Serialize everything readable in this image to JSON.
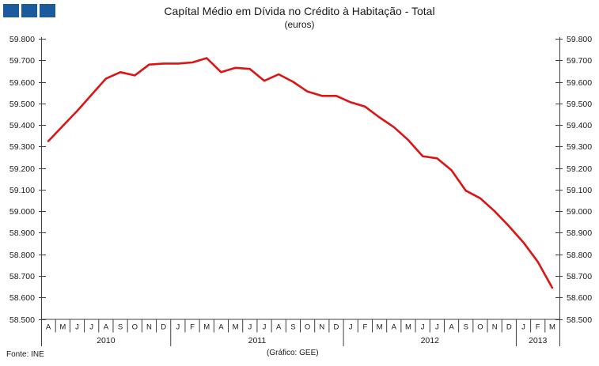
{
  "header": {
    "title": "Capítal Médio em Dívida no Crédito à Habitação - Total",
    "subtitle": "(euros)"
  },
  "footer": {
    "source": "Fonte: INE",
    "credit": "(Gráfico: GEE)"
  },
  "logo": {
    "square_color": "#1b5a9c",
    "squares": 3
  },
  "chart_data": {
    "type": "line",
    "title": "Capítal Médio em Dívida no Crédito à Habitação - Total",
    "subtitle": "(euros)",
    "ylabel": "",
    "xlabel": "",
    "line_color": "#dc1414",
    "axis_color": "#3f3f3f",
    "ylim": [
      58500,
      59800
    ],
    "y_tick_step": 100,
    "y_tick_labels": [
      "59.800",
      "59.700",
      "59.600",
      "59.500",
      "59.400",
      "59.300",
      "59.200",
      "59.100",
      "59.000",
      "58.900",
      "58.800",
      "58.700",
      "58.600",
      "58.500"
    ],
    "y_tick_values": [
      59800,
      59700,
      59600,
      59500,
      59400,
      59300,
      59200,
      59100,
      59000,
      58900,
      58800,
      58700,
      58600,
      58500
    ],
    "legend": "none",
    "grid": false,
    "x_month_labels": [
      "A",
      "M",
      "J",
      "J",
      "A",
      "S",
      "O",
      "N",
      "D",
      "J",
      "F",
      "M",
      "A",
      "M",
      "J",
      "J",
      "A",
      "S",
      "O",
      "N",
      "D",
      "J",
      "F",
      "M",
      "A",
      "M",
      "J",
      "J",
      "A",
      "S",
      "O",
      "N",
      "D",
      "J",
      "F",
      "M"
    ],
    "years": [
      {
        "label": "2010",
        "months": 9
      },
      {
        "label": "2011",
        "months": 12
      },
      {
        "label": "2012",
        "months": 12
      },
      {
        "label": "2013",
        "months": 3
      }
    ],
    "values": [
      59325,
      59395,
      59465,
      59540,
      59615,
      59645,
      59630,
      59680,
      59685,
      59685,
      59690,
      59710,
      59645,
      59665,
      59660,
      59605,
      59635,
      59600,
      59555,
      59535,
      59535,
      59505,
      59485,
      59435,
      59390,
      59330,
      59255,
      59245,
      59190,
      59095,
      59060,
      59000,
      58930,
      58855,
      58765,
      58645
    ]
  }
}
